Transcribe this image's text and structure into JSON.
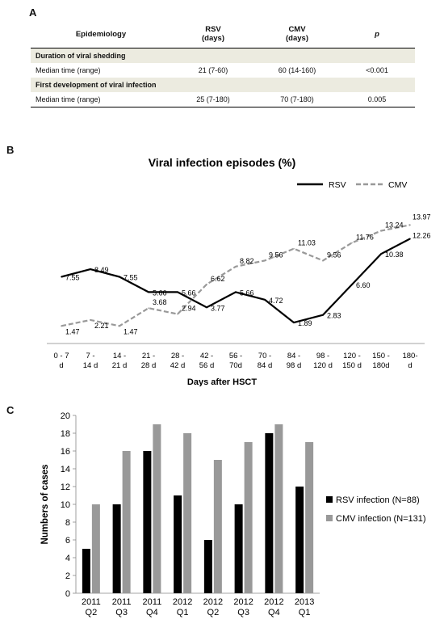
{
  "panel_labels": {
    "a": "A",
    "b": "B",
    "c": "C"
  },
  "table": {
    "headers": {
      "epidemiology": "Epidemiology",
      "rsv": "RSV",
      "rsv_unit": "(days)",
      "cmv": "CMV",
      "cmv_unit": "(days)",
      "p": "p"
    },
    "sections": [
      {
        "title": "Duration of viral shedding",
        "row": {
          "label": "Median time (range)",
          "rsv": "21 (7-60)",
          "cmv": "60 (14-160)",
          "p": "<0.001"
        }
      },
      {
        "title": "First development of viral infection",
        "row": {
          "label": "Median time (range)",
          "rsv": "25 (7-180)",
          "cmv": "70 (7-180)",
          "p": "0.005"
        }
      }
    ]
  },
  "chart_data": [
    {
      "type": "line",
      "title": "Viral infection episodes (%)",
      "xlabel": "Days after HSCT",
      "ylabel": "",
      "categories": [
        [
          "0 - 7",
          "d"
        ],
        [
          "7 -",
          "14 d"
        ],
        [
          "14 -",
          "21 d"
        ],
        [
          "21 -",
          "28 d"
        ],
        [
          "28 -",
          "42 d"
        ],
        [
          "42 -",
          "56 d"
        ],
        [
          "56 -",
          "70d"
        ],
        [
          "70 -",
          "84 d"
        ],
        [
          "84 -",
          "98 d"
        ],
        [
          "98 -",
          "120 d"
        ],
        [
          "120 -",
          "150 d"
        ],
        [
          "150 -",
          "180d"
        ],
        [
          "180-",
          "d"
        ]
      ],
      "ylim": [
        0,
        16
      ],
      "grid": false,
      "legend": "top-right",
      "series": [
        {
          "name": "RSV",
          "style": "solid",
          "color": "#000000",
          "values": [
            7.55,
            8.49,
            7.55,
            5.66,
            5.66,
            3.77,
            5.66,
            4.72,
            1.89,
            2.83,
            6.6,
            10.38,
            12.26
          ],
          "labels": [
            "7.55",
            "8.49",
            "7.55",
            "5.66",
            "5.66",
            "3.77",
            "5.66",
            "4.72",
            "1.89",
            "2.83",
            "6.60",
            "10.38",
            "12.26"
          ]
        },
        {
          "name": "CMV",
          "style": "dashed",
          "color": "#999999",
          "values": [
            1.47,
            2.21,
            1.47,
            3.68,
            2.94,
            6.62,
            8.82,
            9.56,
            11.03,
            9.56,
            11.76,
            13.24,
            13.97
          ],
          "labels": [
            "1.47",
            "2.21",
            "1.47",
            "3.68",
            "2.94",
            "6.62",
            "8.82",
            "9.56",
            "11.03",
            "9.56",
            "11.76",
            "13.24",
            "13.97"
          ]
        }
      ]
    },
    {
      "type": "bar",
      "title": "",
      "xlabel": "",
      "ylabel": "Numbers of cases",
      "categories": [
        [
          "2011",
          "Q2"
        ],
        [
          "2011",
          "Q3"
        ],
        [
          "2011",
          "Q4"
        ],
        [
          "2012",
          "Q1"
        ],
        [
          "2012",
          "Q2"
        ],
        [
          "2012",
          "Q3"
        ],
        [
          "2012",
          "Q4"
        ],
        [
          "2013",
          "Q1"
        ]
      ],
      "ylim": [
        0,
        20
      ],
      "yticks": [
        "0",
        "2",
        "4",
        "6",
        "8",
        "10",
        "12",
        "14",
        "16",
        "18",
        "20"
      ],
      "grid": false,
      "legend": "right",
      "series": [
        {
          "name": "RSV infection (N=88)",
          "color": "#000000",
          "values": [
            5,
            10,
            16,
            11,
            6,
            10,
            18,
            12
          ]
        },
        {
          "name": "CMV infection (N=131)",
          "color": "#999999",
          "values": [
            10,
            16,
            19,
            18,
            15,
            17,
            19,
            17
          ]
        }
      ]
    }
  ]
}
